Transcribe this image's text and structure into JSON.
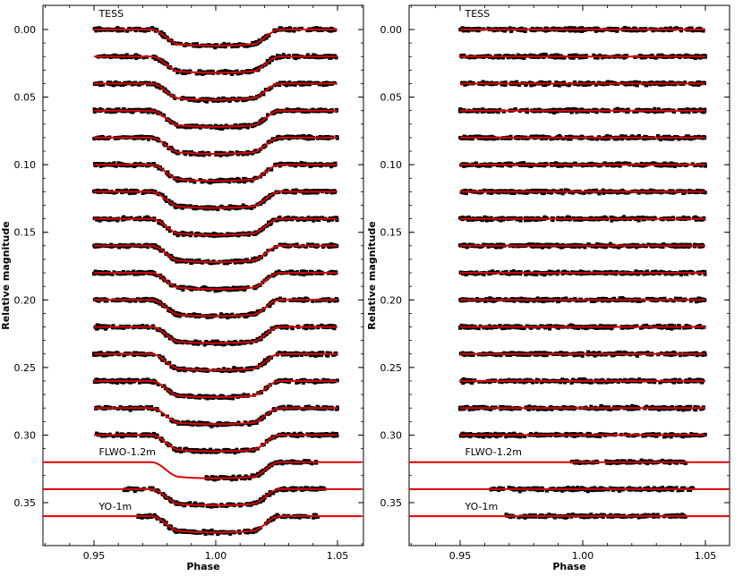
{
  "chart_data": [
    {
      "type": "scatter",
      "panel": "left",
      "description_free": true,
      "xlabel": "Phase",
      "ylabel": "Relative magnitude",
      "xlim": [
        0.92,
        1.06
      ],
      "ylim": [
        0.375,
        -0.02
      ],
      "y_inverted": true,
      "xticks": [
        "0.95",
        "1.00",
        "1.05"
      ],
      "yticks": [
        "0.00",
        "0.05",
        "0.10",
        "0.15",
        "0.20",
        "0.25",
        "0.30",
        "0.35"
      ],
      "labels": [
        "TESS",
        "FLWO-1.2m",
        "YO-1m"
      ],
      "residuals": false,
      "transit_depth": 0.012,
      "series": [
        {
          "offset": 0.0,
          "x_range": [
            0.95,
            1.05
          ]
        },
        {
          "offset": 0.02,
          "x_range": [
            0.95,
            1.05
          ]
        },
        {
          "offset": 0.04,
          "x_range": [
            0.95,
            1.05
          ]
        },
        {
          "offset": 0.06,
          "x_range": [
            0.95,
            1.05
          ]
        },
        {
          "offset": 0.08,
          "x_range": [
            0.95,
            1.05
          ]
        },
        {
          "offset": 0.1,
          "x_range": [
            0.95,
            1.05
          ]
        },
        {
          "offset": 0.12,
          "x_range": [
            0.95,
            1.05
          ]
        },
        {
          "offset": 0.14,
          "x_range": [
            0.95,
            1.05
          ]
        },
        {
          "offset": 0.16,
          "x_range": [
            0.95,
            1.05
          ]
        },
        {
          "offset": 0.18,
          "x_range": [
            0.95,
            1.05
          ]
        },
        {
          "offset": 0.2,
          "x_range": [
            0.95,
            1.05
          ]
        },
        {
          "offset": 0.22,
          "x_range": [
            0.95,
            1.05
          ]
        },
        {
          "offset": 0.24,
          "x_range": [
            0.95,
            1.05
          ]
        },
        {
          "offset": 0.26,
          "x_range": [
            0.95,
            1.05
          ]
        },
        {
          "offset": 0.28,
          "x_range": [
            0.95,
            1.05
          ]
        },
        {
          "offset": 0.3,
          "x_range": [
            0.95,
            1.05
          ]
        },
        {
          "offset": 0.32,
          "x_range": [
            0.995,
            1.042
          ]
        },
        {
          "offset": 0.34,
          "x_range": [
            0.962,
            1.045
          ]
        },
        {
          "offset": 0.36,
          "x_range": [
            0.968,
            1.042
          ]
        }
      ],
      "line_color": "#e00000",
      "point_color": "#000000"
    },
    {
      "type": "scatter",
      "panel": "right",
      "xlabel": "Phase",
      "ylabel": "Relative magnitude",
      "xlim": [
        0.92,
        1.06
      ],
      "ylim": [
        0.375,
        -0.02
      ],
      "y_inverted": true,
      "xticks": [
        "0.95",
        "1.00",
        "1.05"
      ],
      "yticks": [
        "0.00",
        "0.05",
        "0.10",
        "0.15",
        "0.20",
        "0.25",
        "0.30",
        "0.35"
      ],
      "labels": [
        "TESS",
        "FLWO-1.2m",
        "YO-1m"
      ],
      "residuals": true,
      "transit_depth": 0,
      "series": [
        {
          "offset": 0.0,
          "x_range": [
            0.95,
            1.05
          ]
        },
        {
          "offset": 0.02,
          "x_range": [
            0.95,
            1.05
          ]
        },
        {
          "offset": 0.04,
          "x_range": [
            0.95,
            1.05
          ]
        },
        {
          "offset": 0.06,
          "x_range": [
            0.95,
            1.05
          ]
        },
        {
          "offset": 0.08,
          "x_range": [
            0.95,
            1.05
          ]
        },
        {
          "offset": 0.1,
          "x_range": [
            0.95,
            1.05
          ]
        },
        {
          "offset": 0.12,
          "x_range": [
            0.95,
            1.05
          ]
        },
        {
          "offset": 0.14,
          "x_range": [
            0.95,
            1.05
          ]
        },
        {
          "offset": 0.16,
          "x_range": [
            0.95,
            1.05
          ]
        },
        {
          "offset": 0.18,
          "x_range": [
            0.95,
            1.05
          ]
        },
        {
          "offset": 0.2,
          "x_range": [
            0.95,
            1.05
          ]
        },
        {
          "offset": 0.22,
          "x_range": [
            0.95,
            1.05
          ]
        },
        {
          "offset": 0.24,
          "x_range": [
            0.95,
            1.05
          ]
        },
        {
          "offset": 0.26,
          "x_range": [
            0.95,
            1.05
          ]
        },
        {
          "offset": 0.28,
          "x_range": [
            0.95,
            1.05
          ]
        },
        {
          "offset": 0.3,
          "x_range": [
            0.95,
            1.05
          ]
        },
        {
          "offset": 0.32,
          "x_range": [
            0.995,
            1.042
          ]
        },
        {
          "offset": 0.34,
          "x_range": [
            0.962,
            1.045
          ]
        },
        {
          "offset": 0.36,
          "x_range": [
            0.968,
            1.042
          ]
        }
      ],
      "line_color": "#e00000",
      "point_color": "#000000"
    }
  ]
}
